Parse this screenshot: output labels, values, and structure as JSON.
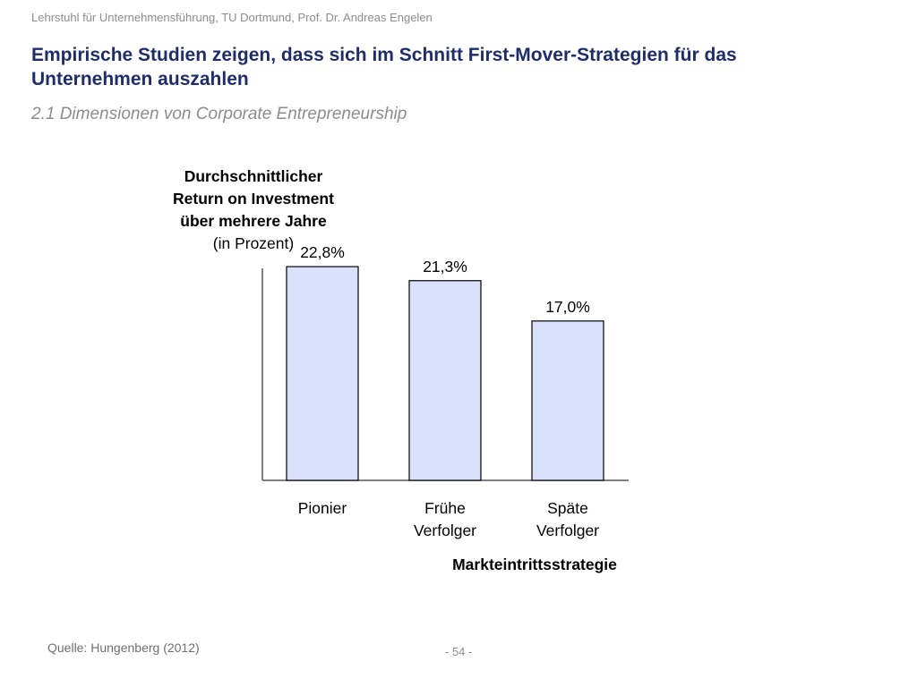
{
  "header": {
    "institution": "Lehrstuhl für Unternehmensführung, TU Dortmund,  Prof. Dr. Andreas Engelen"
  },
  "slide": {
    "title": "Empirische Studien zeigen, dass sich im Schnitt First-Mover-Strategien für das Unternehmen auszahlen",
    "subtitle": "2.1 Dimensionen von Corporate Entrepreneurship"
  },
  "chart_data": {
    "type": "bar",
    "title_lines": [
      "Durchschnittlicher",
      "Return on Investment",
      "über mehrere Jahre"
    ],
    "title_unit": "(in Prozent)",
    "categories": [
      [
        "Pionier"
      ],
      [
        "Frühe",
        "Verfolger"
      ],
      [
        "Späte",
        "Verfolger"
      ]
    ],
    "values": [
      22.8,
      21.3,
      17.0
    ],
    "value_labels": [
      "22,8%",
      "21,3%",
      "17,0%"
    ],
    "xlabel": "Markteintrittsstrategie",
    "ylabel": "",
    "ylim": [
      0,
      25
    ],
    "grid": false,
    "bar_fill": "#d9e1fc",
    "bar_stroke": "#000000"
  },
  "footer": {
    "source": "Quelle: Hungenberg (2012)",
    "page": "- 54 -"
  }
}
